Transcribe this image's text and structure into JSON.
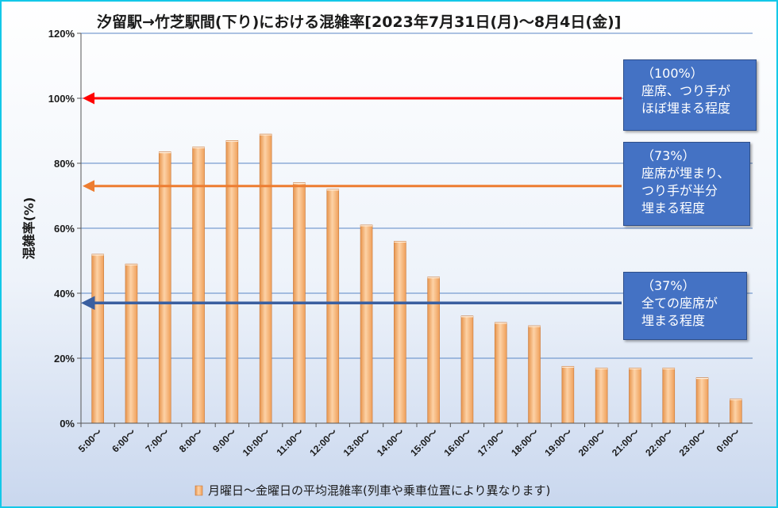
{
  "chart_data": {
    "type": "bar",
    "title": "汐留駅→竹芝駅間(下り)における混雑率[2023年7月31日(月)～8月4日(金)]",
    "ylabel": "混雑率(%)",
    "xlabel": "",
    "ylim": [
      0,
      120
    ],
    "y_ticks": [
      "0%",
      "20%",
      "40%",
      "60%",
      "80%",
      "100%",
      "120%"
    ],
    "grid": true,
    "legend_position": "bottom",
    "categories": [
      "5:00～",
      "6:00～",
      "7:00～",
      "8:00～",
      "9:00～",
      "10:00～",
      "11:00～",
      "12:00～",
      "13:00～",
      "14:00～",
      "15:00～",
      "16:00～",
      "17:00～",
      "18:00～",
      "19:00～",
      "20:00～",
      "21:00～",
      "22:00～",
      "23:00～",
      "0:00～"
    ],
    "series": [
      {
        "name": "月曜日～金曜日の平均混雑率(列車や乗車位置により異なります)",
        "values": [
          52,
          49,
          83.5,
          85,
          87,
          89,
          74,
          72,
          61,
          56,
          45,
          33,
          31,
          30,
          17.5,
          17,
          17,
          17,
          14,
          7.5
        ],
        "color": "#f7b77b"
      }
    ],
    "reference_lines": [
      {
        "value": 100,
        "color": "#ff0000",
        "label_lines": [
          "（100%）",
          "座席、つり手が",
          "ほぼ埋まる程度"
        ]
      },
      {
        "value": 73,
        "color": "#ed7d31",
        "label_lines": [
          "（73%）",
          "座席が埋まり、",
          "つり手が半分",
          "埋まる程度"
        ]
      },
      {
        "value": 37,
        "color": "#3a5fa0",
        "label_lines": [
          "（37%）",
          "全ての座席が",
          "埋まる程度"
        ]
      }
    ]
  }
}
